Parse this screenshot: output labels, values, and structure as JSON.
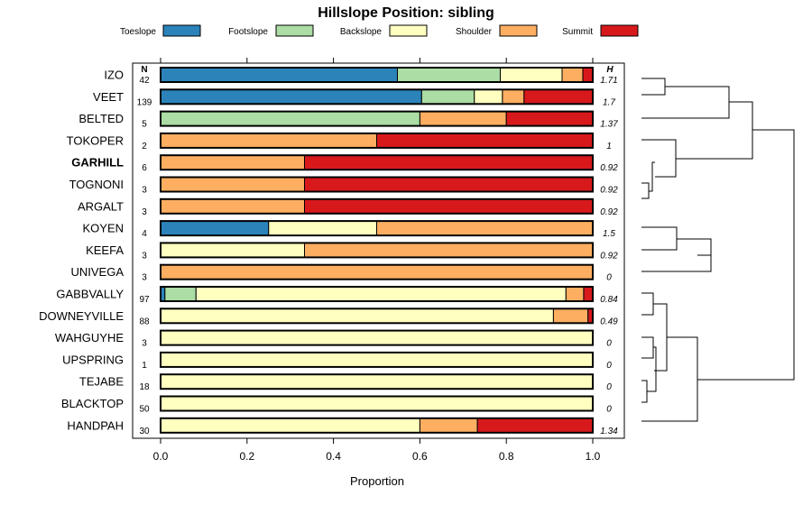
{
  "chart_data": {
    "type": "bar",
    "stacked": true,
    "orientation": "horizontal",
    "title": "Hillslope Position: sibling",
    "xlabel": "Proportion",
    "xlim": [
      0,
      1
    ],
    "x_ticks": [
      "0.0",
      "0.2",
      "0.4",
      "0.6",
      "0.8",
      "1.0"
    ],
    "x_tick_values": [
      0,
      0.2,
      0.4,
      0.6,
      0.8,
      1.0
    ],
    "n_header": "N",
    "h_header": "H",
    "legend_position": "top",
    "series": [
      {
        "name": "Toeslope",
        "color": "#2B83BA"
      },
      {
        "name": "Footslope",
        "color": "#ABDDA4"
      },
      {
        "name": "Backslope",
        "color": "#FFFFBF"
      },
      {
        "name": "Shoulder",
        "color": "#FDAE61"
      },
      {
        "name": "Summit",
        "color": "#D7191C"
      }
    ],
    "rows": [
      {
        "label": "IZO",
        "n": "42",
        "h": "1.71",
        "bold": false,
        "values": [
          0.548,
          0.238,
          0.143,
          0.048,
          0.023
        ]
      },
      {
        "label": "VEET",
        "n": "139",
        "h": "1.7",
        "bold": false,
        "values": [
          0.604,
          0.122,
          0.065,
          0.05,
          0.159
        ]
      },
      {
        "label": "BELTED",
        "n": "5",
        "h": "1.37",
        "bold": false,
        "values": [
          0,
          0.6,
          0,
          0.2,
          0.2
        ]
      },
      {
        "label": "TOKOPER",
        "n": "2",
        "h": "1",
        "bold": false,
        "values": [
          0,
          0,
          0,
          0.5,
          0.5
        ]
      },
      {
        "label": "GARHILL",
        "n": "6",
        "h": "0.92",
        "bold": true,
        "values": [
          0,
          0,
          0,
          0.333,
          0.667
        ]
      },
      {
        "label": "TOGNONI",
        "n": "3",
        "h": "0.92",
        "bold": false,
        "values": [
          0,
          0,
          0,
          0.333,
          0.667
        ]
      },
      {
        "label": "ARGALT",
        "n": "3",
        "h": "0.92",
        "bold": false,
        "values": [
          0,
          0,
          0,
          0.333,
          0.667
        ]
      },
      {
        "label": "KOYEN",
        "n": "4",
        "h": "1.5",
        "bold": false,
        "values": [
          0.25,
          0,
          0.25,
          0.5,
          0
        ]
      },
      {
        "label": "KEEFA",
        "n": "3",
        "h": "0.92",
        "bold": false,
        "values": [
          0,
          0,
          0.333,
          0.667,
          0
        ]
      },
      {
        "label": "UNIVEGA",
        "n": "3",
        "h": "0",
        "bold": false,
        "values": [
          0,
          0,
          0,
          1,
          0
        ]
      },
      {
        "label": "GABBVALLY",
        "n": "97",
        "h": "0.84",
        "bold": false,
        "values": [
          0.01,
          0.072,
          0.856,
          0.041,
          0.021
        ]
      },
      {
        "label": "DOWNEYVILLE",
        "n": "88",
        "h": "0.49",
        "bold": false,
        "values": [
          0,
          0,
          0.909,
          0.08,
          0.011
        ]
      },
      {
        "label": "WAHGUYHE",
        "n": "3",
        "h": "0",
        "bold": false,
        "values": [
          0,
          0,
          1,
          0,
          0
        ]
      },
      {
        "label": "UPSPRING",
        "n": "1",
        "h": "0",
        "bold": false,
        "values": [
          0,
          0,
          1,
          0,
          0
        ]
      },
      {
        "label": "TEJABE",
        "n": "18",
        "h": "0",
        "bold": false,
        "values": [
          0,
          0,
          1,
          0,
          0
        ]
      },
      {
        "label": "BLACKTOP",
        "n": "50",
        "h": "0",
        "bold": false,
        "values": [
          0,
          0,
          1,
          0,
          0
        ]
      },
      {
        "label": "HANDPAH",
        "n": "30",
        "h": "1.34",
        "bold": false,
        "values": [
          0,
          0,
          0.6,
          0.133,
          0.267
        ]
      }
    ]
  }
}
